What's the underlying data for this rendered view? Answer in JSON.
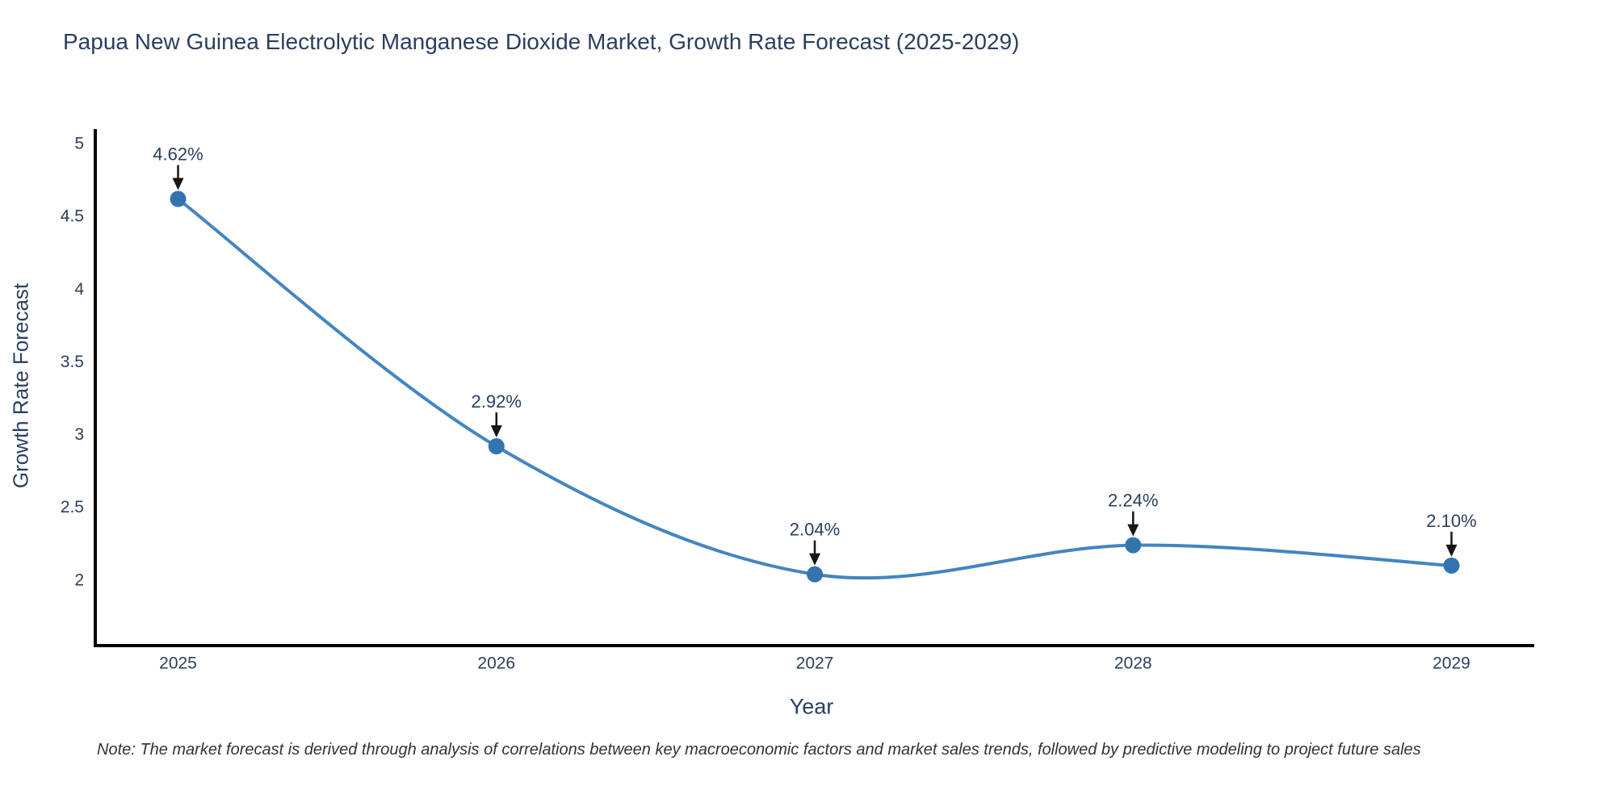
{
  "page": {
    "background": "#ffffff"
  },
  "chart_data": {
    "type": "line",
    "title": "Papua New Guinea Electrolytic Manganese Dioxide Market, Growth Rate Forecast (2025-2029)",
    "xlabel": "Year",
    "ylabel": "Growth Rate Forecast",
    "curve": "spline",
    "grid": false,
    "legend": false,
    "x": [
      2025,
      2026,
      2027,
      2028,
      2029
    ],
    "values": [
      4.62,
      2.92,
      2.04,
      2.24,
      2.1
    ],
    "point_labels": [
      "4.62%",
      "2.92%",
      "2.04%",
      "2.24%",
      "2.10%"
    ],
    "x_tick_labels": [
      "2025",
      "2026",
      "2027",
      "2028",
      "2029"
    ],
    "y_tick_values": [
      2,
      2.5,
      3,
      3.5,
      4,
      4.5,
      5
    ],
    "y_tick_labels": [
      "2",
      "2.5",
      "3",
      "3.5",
      "4",
      "4.5",
      "5"
    ],
    "xlim": [
      2024.74,
      2029.26
    ],
    "ylim": [
      1.55,
      5.1
    ],
    "colors": {
      "line": "#4385c1",
      "marker": "#3474ae",
      "axis": "#000000",
      "text": "#2a3f5f",
      "annotation_text": "#2a3f5f",
      "annotation_arrow": "#161616"
    }
  },
  "note": {
    "text": "Note: The market forecast is derived through analysis of correlations between key macroeconomic factors and market sales trends, followed by predictive modeling to project future sales"
  }
}
